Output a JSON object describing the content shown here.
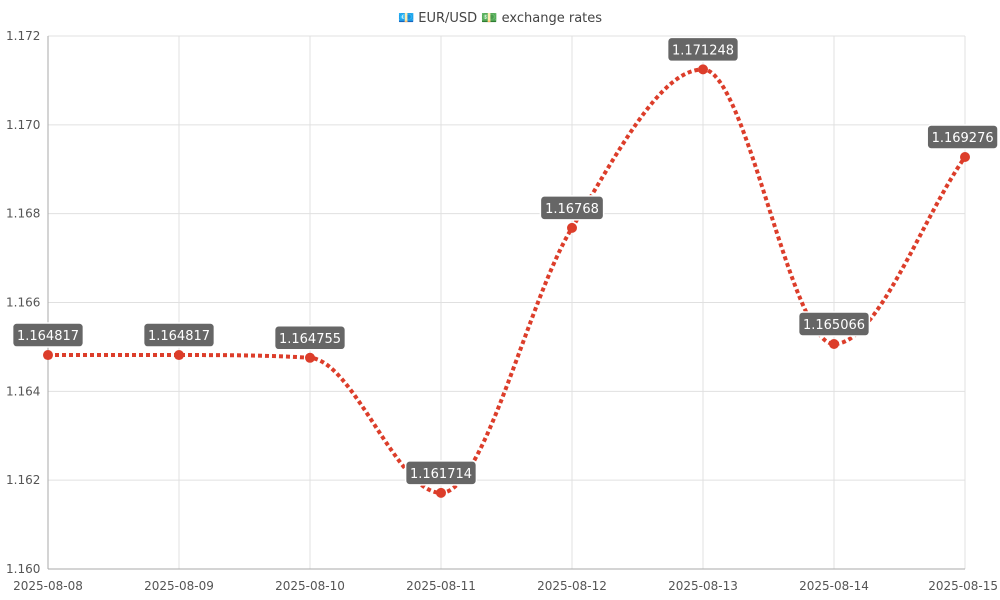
{
  "chart_data": {
    "type": "line",
    "title": "💶 EUR/USD 💵 exchange rates",
    "x": [
      "2025-08-08",
      "2025-08-09",
      "2025-08-10",
      "2025-08-11",
      "2025-08-12",
      "2025-08-13",
      "2025-08-14",
      "2025-08-15"
    ],
    "series": [
      {
        "values": [
          1.164817,
          1.164817,
          1.164755,
          1.161714,
          1.16768,
          1.171248,
          1.165066,
          1.169276
        ],
        "data_labels": [
          "1.164817",
          "1.164817",
          "1.164755",
          "1.161714",
          "1.16768",
          "1.171248",
          "1.165066",
          "1.169276"
        ],
        "color": "#dc3d2a",
        "line_style": "dotted",
        "smooth": true
      }
    ],
    "ylim": [
      1.16,
      1.172
    ],
    "yticks": [
      "1.160",
      "1.162",
      "1.164",
      "1.166",
      "1.168",
      "1.170",
      "1.172"
    ],
    "xlabel": "",
    "ylabel": "",
    "grid": true,
    "legend": "none",
    "label_box_color": "#666666",
    "grid_color": "#e0e0e0"
  }
}
